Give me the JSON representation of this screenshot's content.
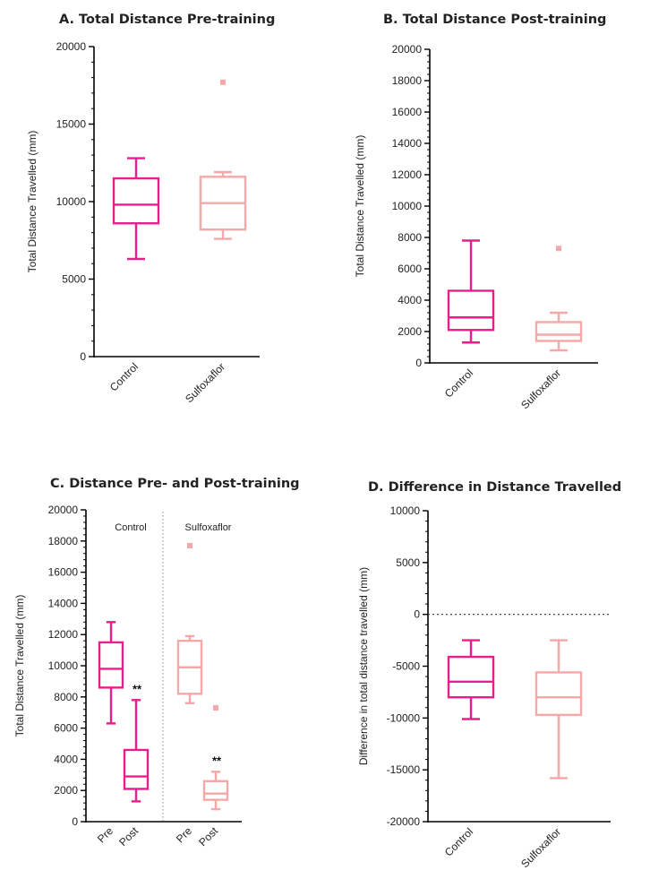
{
  "colors": {
    "control": "#e91e8c",
    "sulfoxaflor": "#f4a8a8",
    "axis": "#000000"
  },
  "chart_data": [
    {
      "id": "A",
      "type": "box",
      "title": "A.   Total Distance Pre-training",
      "ylabel": "Total Distance Travelled (mm)",
      "ylim": [
        0,
        20000
      ],
      "yticks": [
        0,
        5000,
        10000,
        15000,
        20000
      ],
      "yticklabels": [
        "0",
        "5000",
        "10000",
        "15000",
        "20000"
      ],
      "categories": [
        "Control",
        "Sulfoxaflor"
      ],
      "boxes": [
        {
          "category": "Control",
          "min": 6300,
          "q1": 8600,
          "median": 9800,
          "q3": 11500,
          "max": 12800,
          "outliers": []
        },
        {
          "category": "Sulfoxaflor",
          "min": 7600,
          "q1": 8200,
          "median": 9900,
          "q3": 11600,
          "max": 11900,
          "outliers": [
            17700
          ]
        }
      ]
    },
    {
      "id": "B",
      "type": "box",
      "title": "B.   Total Distance Post-training",
      "ylabel": "Total Distance Travelled (mm)",
      "ylim": [
        0,
        20000
      ],
      "yticks": [
        0,
        2000,
        4000,
        6000,
        8000,
        10000,
        12000,
        14000,
        16000,
        18000,
        20000
      ],
      "yticklabels": [
        "0",
        "2000",
        "4000",
        "6000",
        "8000",
        "10000",
        "12000",
        "14000",
        "16000",
        "18000",
        "20000"
      ],
      "categories": [
        "Control",
        "Sulfoxaflor"
      ],
      "boxes": [
        {
          "category": "Control",
          "min": 1300,
          "q1": 2100,
          "median": 2900,
          "q3": 4600,
          "max": 7800,
          "outliers": []
        },
        {
          "category": "Sulfoxaflor",
          "min": 800,
          "q1": 1400,
          "median": 1800,
          "q3": 2600,
          "max": 3200,
          "outliers": [
            7300
          ]
        }
      ]
    },
    {
      "id": "C",
      "type": "box",
      "title": "C.   Distance Pre- and Post-training",
      "ylabel": "Total Distance Travelled (mm)",
      "ylim": [
        0,
        20000
      ],
      "yticks": [
        0,
        2000,
        4000,
        6000,
        8000,
        10000,
        12000,
        14000,
        16000,
        18000,
        20000
      ],
      "yticklabels": [
        "0",
        "2000",
        "4000",
        "6000",
        "8000",
        "10000",
        "12000",
        "14000",
        "16000",
        "18000",
        "20000"
      ],
      "groups": [
        "Control",
        "Sulfoxaflor"
      ],
      "categories": [
        "Pre",
        "Post",
        "Pre",
        "Post"
      ],
      "annotations": [
        "**",
        "**"
      ],
      "boxes": [
        {
          "group": "Control",
          "category": "Pre",
          "min": 6300,
          "q1": 8600,
          "median": 9800,
          "q3": 11500,
          "max": 12800,
          "outliers": [],
          "annotation": ""
        },
        {
          "group": "Control",
          "category": "Post",
          "min": 1300,
          "q1": 2100,
          "median": 2900,
          "q3": 4600,
          "max": 7800,
          "outliers": [],
          "annotation": "**"
        },
        {
          "group": "Sulfoxaflor",
          "category": "Pre",
          "min": 7600,
          "q1": 8200,
          "median": 9900,
          "q3": 11600,
          "max": 11900,
          "outliers": [
            17700
          ],
          "annotation": ""
        },
        {
          "group": "Sulfoxaflor",
          "category": "Post",
          "min": 800,
          "q1": 1400,
          "median": 1800,
          "q3": 2600,
          "max": 3200,
          "outliers": [
            7300
          ],
          "annotation": "**"
        }
      ]
    },
    {
      "id": "D",
      "type": "box",
      "title": "D.   Difference in Distance Travelled",
      "ylabel": "Difference in total distance travelled (mm)",
      "ylim": [
        -20000,
        10000
      ],
      "yticks": [
        -20000,
        -15000,
        -10000,
        -5000,
        0,
        5000,
        10000
      ],
      "yticklabels": [
        "-20000",
        "-15000",
        "-10000",
        "-5000",
        "0",
        "5000",
        "10000"
      ],
      "reference_line": 0,
      "categories": [
        "Control",
        "Sulfoxaflor"
      ],
      "boxes": [
        {
          "category": "Control",
          "min": -10100,
          "q1": -8000,
          "median": -6500,
          "q3": -4100,
          "max": -2500,
          "outliers": []
        },
        {
          "category": "Sulfoxaflor",
          "min": -15800,
          "q1": -9700,
          "median": -8000,
          "q3": -5600,
          "max": -2500,
          "outliers": []
        }
      ]
    }
  ]
}
